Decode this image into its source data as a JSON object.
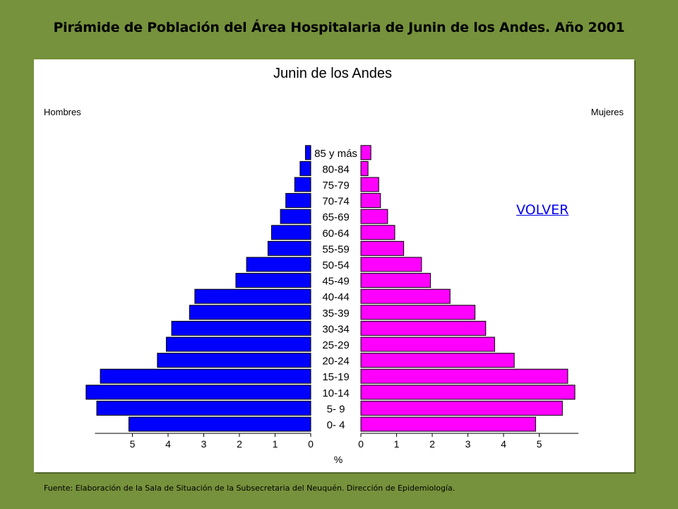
{
  "page": {
    "title": "Pirámide de Población del Área Hospitalaria de Junin de los Andes. Año 2001",
    "volver_label": "VOLVER",
    "source": "Fuente: Elaboración de la Sala de Situación de la Subsecretaria del Neuquén. Dirección de Epidemiología."
  },
  "colors": {
    "background": "#76923c",
    "male": "#0000ff",
    "female": "#ff00ff",
    "link": "#0000ee"
  },
  "chart_data": {
    "type": "bar",
    "orientation": "horizontal-pyramid",
    "title": "Junin de los Andes",
    "xlabel": "%",
    "left_label": "Hombres",
    "right_label": "Mujeres",
    "categories": [
      "0- 4",
      "5- 9",
      "10-14",
      "15-19",
      "20-24",
      "25-29",
      "30-34",
      "35-39",
      "40-44",
      "45-49",
      "50-54",
      "55-59",
      "60-64",
      "65-69",
      "70-74",
      "75-79",
      "80-84",
      "85 y más"
    ],
    "series": [
      {
        "name": "Hombres",
        "values": [
          5.1,
          6.0,
          6.3,
          5.9,
          4.3,
          4.05,
          3.9,
          3.4,
          3.25,
          2.1,
          1.8,
          1.2,
          1.1,
          0.85,
          0.7,
          0.45,
          0.3,
          0.15
        ]
      },
      {
        "name": "Mujeres",
        "values": [
          4.9,
          5.65,
          6.0,
          5.8,
          4.3,
          3.75,
          3.5,
          3.2,
          2.5,
          1.95,
          1.7,
          1.2,
          0.95,
          0.75,
          0.55,
          0.5,
          0.2,
          0.28
        ]
      }
    ],
    "xlim": [
      0,
      6
    ],
    "left_ticks": [
      "5",
      "4",
      "3",
      "2",
      "1",
      "0"
    ],
    "right_ticks": [
      "0",
      "1",
      "2",
      "3",
      "4",
      "5"
    ],
    "grid": false,
    "legend": "none"
  }
}
